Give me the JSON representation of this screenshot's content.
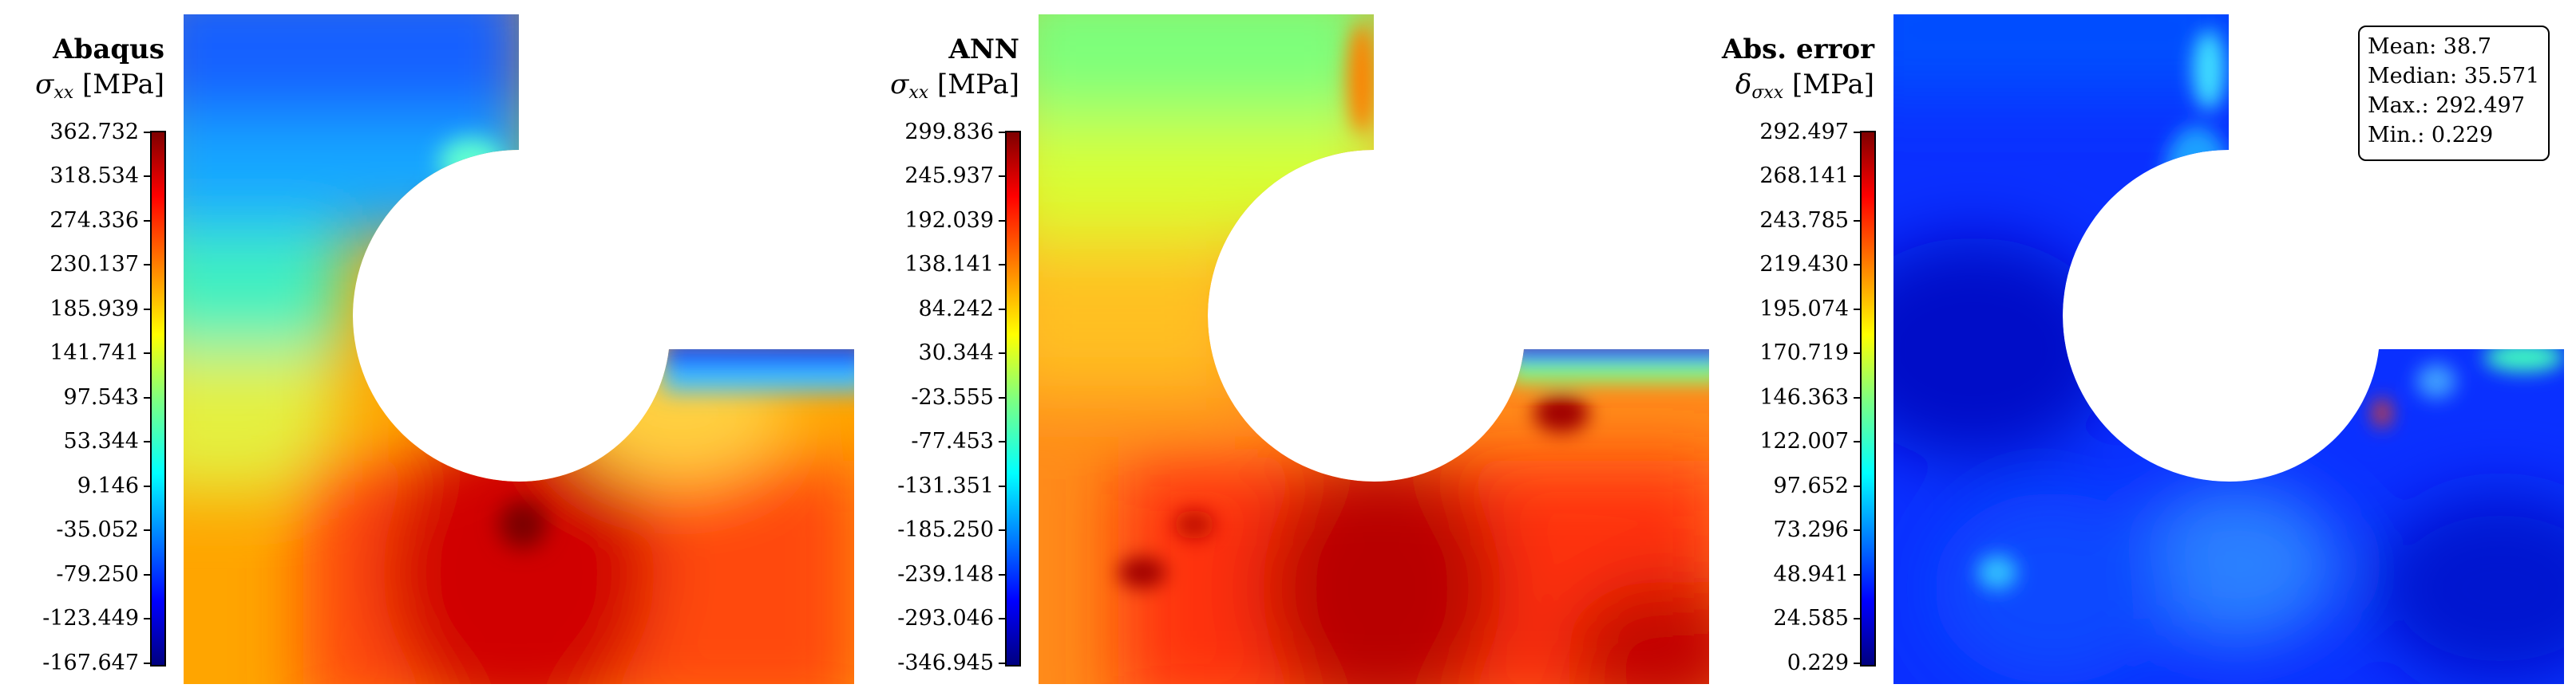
{
  "panels": [
    {
      "title": "Abaqus",
      "symbol": "σ",
      "subscript": "xx",
      "unit": " [MPa]",
      "ticks": [
        "362.732",
        "318.534",
        "274.336",
        "230.137",
        "185.939",
        "141.741",
        "97.543",
        "53.344",
        "9.146",
        "-35.052",
        "-79.250",
        "-123.449",
        "-167.647"
      ]
    },
    {
      "title": "ANN",
      "symbol": "σ",
      "subscript": "xx",
      "unit": " [MPa]",
      "ticks": [
        "299.836",
        "245.937",
        "192.039",
        "138.141",
        "84.242",
        "30.344",
        "-23.555",
        "-77.453",
        "-131.351",
        "-185.250",
        "-239.148",
        "-293.046",
        "-346.945"
      ]
    },
    {
      "title": "Abs. error",
      "symbol": "δ",
      "subscript": "σxx",
      "unit": " [MPa]",
      "ticks": [
        "292.497",
        "268.141",
        "243.785",
        "219.430",
        "195.074",
        "170.719",
        "146.363",
        "122.007",
        "97.652",
        "73.296",
        "48.941",
        "24.585",
        "0.229"
      ]
    }
  ],
  "stats": {
    "mean": "Mean: 38.7",
    "median": "Median: 35.571",
    "max": "Max.: 292.497",
    "min": "Min.: 0.229"
  }
}
